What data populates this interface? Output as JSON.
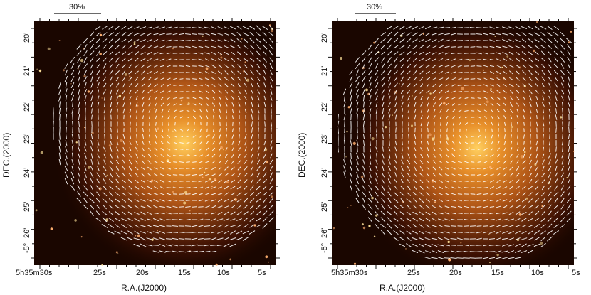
{
  "panels": [
    {
      "id": "left",
      "scale_label": "30%",
      "xlabel": "R.A.(J2000)",
      "ylabel": "DEC.(2000)",
      "x_ticks": [
        "5h35m30s",
        "25s",
        "20s",
        "15s",
        "10s",
        "5s"
      ],
      "y_ticks": [
        "20'",
        "21'",
        "22'",
        "23'",
        "24'",
        "25'",
        "26'",
        "-5°"
      ]
    },
    {
      "id": "right",
      "scale_label": "30%",
      "xlabel": "R.A.(J2000)",
      "ylabel": "DEC.(2000)",
      "x_ticks": [
        "5h35m30s",
        "25s",
        "20s",
        "15s",
        "10s",
        "5s"
      ],
      "y_ticks": [
        "20'",
        "21'",
        "22'",
        "23'",
        "24'",
        "25'",
        "26'",
        "-5°"
      ]
    }
  ],
  "colors": {
    "background": "#1a0600",
    "nebula": "#c8621a",
    "core": "#ffd060",
    "vectors": "#ffffff"
  }
}
